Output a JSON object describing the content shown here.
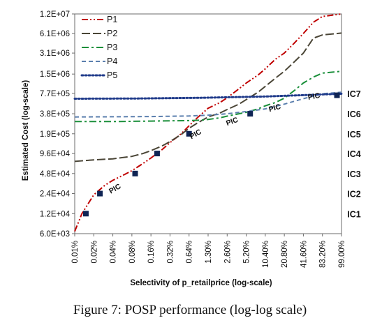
{
  "chart_data": {
    "type": "line",
    "x_scale": "log",
    "y_scale": "log",
    "xlabel": "Selectivity of p_retailprice (log-scale)",
    "ylabel": "Estimated Cost  (log-scale)",
    "x_ticks": [
      {
        "label": "0.01%",
        "value": 0.01
      },
      {
        "label": "0.02%",
        "value": 0.02
      },
      {
        "label": "0.04%",
        "value": 0.04
      },
      {
        "label": "0.08%",
        "value": 0.08
      },
      {
        "label": "0.16%",
        "value": 0.16
      },
      {
        "label": "0.32%",
        "value": 0.32
      },
      {
        "label": "0.64%",
        "value": 0.64
      },
      {
        "label": "1.30%",
        "value": 1.3
      },
      {
        "label": "2.60%",
        "value": 2.6
      },
      {
        "label": "5.20%",
        "value": 5.2
      },
      {
        "label": "10.40%",
        "value": 10.4
      },
      {
        "label": "20.80%",
        "value": 20.8
      },
      {
        "label": "41.60%",
        "value": 41.6
      },
      {
        "label": "83.20%",
        "value": 83.2
      },
      {
        "label": "99.00%",
        "value": 99
      }
    ],
    "y_ticks": [
      {
        "label": "6.0E+03",
        "value": 6000
      },
      {
        "label": "1.2E+04",
        "value": 12000
      },
      {
        "label": "2.4E+04",
        "value": 24000
      },
      {
        "label": "4.8E+04",
        "value": 48000
      },
      {
        "label": "9.6E+04",
        "value": 96000
      },
      {
        "label": "1.9E+05",
        "value": 190000
      },
      {
        "label": "3.8E+05",
        "value": 380000
      },
      {
        "label": "7.7E+05",
        "value": 770000
      },
      {
        "label": "1.5E+06",
        "value": 1500000
      },
      {
        "label": "3.1E+06",
        "value": 3100000
      },
      {
        "label": "6.1E+06",
        "value": 6100000
      },
      {
        "label": "1.2E+07",
        "value": 12000000
      }
    ],
    "xlim": [
      0.01,
      99
    ],
    "ylim": [
      6000,
      12000000
    ],
    "series": [
      {
        "name": "P1",
        "color": "#c00000",
        "dash": "dash-dot-dot",
        "x": [
          0.01,
          0.013,
          0.02,
          0.03,
          0.04,
          0.06,
          0.08,
          0.12,
          0.16,
          0.24,
          0.32,
          0.48,
          0.64,
          0.9,
          1.3,
          2.0,
          2.6,
          4.0,
          5.2,
          8.0,
          10.4,
          15,
          20.8,
          30,
          41.6,
          60,
          83.2,
          99
        ],
        "y": [
          6500,
          12000,
          23000,
          32000,
          38000,
          46000,
          53000,
          68000,
          82000,
          110000,
          140000,
          190000,
          250000,
          340000,
          460000,
          560000,
          660000,
          900000,
          1100000,
          1450000,
          1800000,
          2500000,
          3100000,
          4400000,
          6100000,
          9000000,
          11000000,
          12000000
        ]
      },
      {
        "name": "P2",
        "color": "#4a4536",
        "dash": "long-dash",
        "x": [
          0.01,
          0.02,
          0.04,
          0.08,
          0.12,
          0.16,
          0.24,
          0.32,
          0.48,
          0.64,
          0.9,
          1.3,
          2.0,
          2.6,
          4.0,
          5.2,
          8.0,
          10.4,
          15,
          20.8,
          30,
          41.6,
          60,
          83.2,
          99
        ],
        "y": [
          73000,
          77000,
          80000,
          87000,
          96000,
          106000,
          125000,
          145000,
          185000,
          230000,
          280000,
          340000,
          390000,
          440000,
          530000,
          620000,
          800000,
          980000,
          1300000,
          1650000,
          2300000,
          3100000,
          5200000,
          5800000,
          6200000
        ]
      },
      {
        "name": "P3",
        "color": "#1a8f3a",
        "dash": "dash-dot",
        "x": [
          0.01,
          0.04,
          0.16,
          0.32,
          0.64,
          1.0,
          1.3,
          2.0,
          2.6,
          4.0,
          5.2,
          8.0,
          10.4,
          15,
          20.8,
          30,
          41.6,
          60,
          83.2,
          99
        ],
        "y": [
          290000,
          290000,
          295000,
          298000,
          300000,
          305000,
          312000,
          330000,
          350000,
          380000,
          400000,
          450000,
          500000,
          560000,
          650000,
          850000,
          1100000,
          1350000,
          1550000,
          1650000
        ]
      },
      {
        "name": "P4",
        "color": "#5b7fae",
        "dash": "dash",
        "x": [
          0.01,
          0.04,
          0.16,
          0.32,
          0.64,
          1.3,
          2.6,
          5.2,
          10.4,
          20.8,
          41.6,
          83.2,
          99
        ],
        "y": [
          340000,
          342000,
          345000,
          348000,
          352000,
          362000,
          380000,
          410000,
          450000,
          530000,
          640000,
          760000,
          800000
        ]
      },
      {
        "name": "P5",
        "color": "#1f3a8a",
        "dash": "dot",
        "x": [
          0.01,
          0.1,
          1.0,
          10.0,
          99
        ],
        "y": [
          640000,
          645000,
          660000,
          690000,
          760000
        ]
      }
    ],
    "markers": {
      "name": "PIC",
      "x": [
        0.015,
        0.025,
        0.09,
        0.2,
        0.64,
        6.0,
        95
      ],
      "y": [
        12000,
        24000,
        48000,
        96000,
        190000,
        380000,
        720000
      ]
    },
    "pic_labels": [
      {
        "text": "PIC",
        "x": 0.045,
        "y": 26500,
        "angle": -30
      },
      {
        "text": "PIC",
        "x": 0.85,
        "y": 175000,
        "angle": -30
      },
      {
        "text": "PIC",
        "x": 3.2,
        "y": 270000,
        "angle": -20
      },
      {
        "text": "PIC",
        "x": 15,
        "y": 430000,
        "angle": -15
      },
      {
        "text": "PIC",
        "x": 62,
        "y": 640000,
        "angle": -10
      }
    ],
    "ic_labels": [
      {
        "text": "IC1",
        "y": 12000
      },
      {
        "text": "IC2",
        "y": 24000
      },
      {
        "text": "IC3",
        "y": 48000
      },
      {
        "text": "IC4",
        "y": 96000
      },
      {
        "text": "IC5",
        "y": 190000
      },
      {
        "text": "IC6",
        "y": 380000
      },
      {
        "text": "IC7",
        "y": 770000
      }
    ],
    "legend": {
      "placement": "top-left",
      "entries": [
        "P1",
        "P2",
        "P3",
        "P4",
        "P5"
      ]
    },
    "grid": false
  },
  "caption": "Figure 7: POSP performance (log-log scale)"
}
